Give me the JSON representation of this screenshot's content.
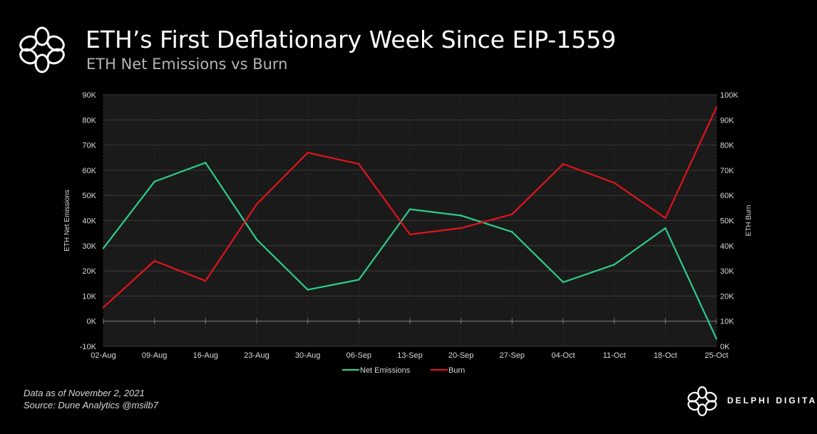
{
  "header": {
    "title": "ETH’s First Deflationary Week Since EIP-1559",
    "subtitle": "ETH Net Emissions vs Burn"
  },
  "footer": {
    "data_date": "Data as of November 2, 2021",
    "source": "Source: Dune Analytics @msilb7",
    "brand_name": "DELPHI DIGITAL"
  },
  "colors": {
    "background": "#000000",
    "plot_background": "#1a1a1a",
    "net_emissions": "#2ecc8a",
    "burn": "#e0141b",
    "axis_text": "#d9d9d9"
  },
  "icons": {
    "header_logo": "delphi-flower-logo-icon",
    "brand_logo": "delphi-flower-logo-icon"
  },
  "chart_data": {
    "type": "line",
    "categories": [
      "02-Aug",
      "09-Aug",
      "16-Aug",
      "23-Aug",
      "30-Aug",
      "06-Sep",
      "13-Sep",
      "20-Sep",
      "27-Sep",
      "04-Oct",
      "11-Oct",
      "18-Oct",
      "25-Oct"
    ],
    "series": [
      {
        "name": "Net Emissions",
        "axis": "left",
        "values": [
          29000,
          55500,
          63000,
          32500,
          12500,
          16500,
          44500,
          42000,
          35500,
          15500,
          22500,
          37000,
          -7000
        ]
      },
      {
        "name": "Burn",
        "axis": "right",
        "values": [
          15500,
          34000,
          26000,
          56500,
          77000,
          72500,
          44500,
          47000,
          52500,
          72500,
          65000,
          51000,
          95000
        ]
      }
    ],
    "ylabel": "ETH Net Emissions",
    "y2label": "ETH Burn",
    "ylim": [
      -10000,
      90000
    ],
    "y2lim": [
      0,
      100000
    ],
    "yticks": [
      "-10K",
      "0K",
      "10K",
      "20K",
      "30K",
      "40K",
      "50K",
      "60K",
      "70K",
      "80K",
      "90K"
    ],
    "y2ticks": [
      "0K",
      "10K",
      "20K",
      "30K",
      "40K",
      "50K",
      "60K",
      "70K",
      "80K",
      "90K",
      "100K"
    ],
    "grid": true,
    "legend_position": "bottom"
  }
}
